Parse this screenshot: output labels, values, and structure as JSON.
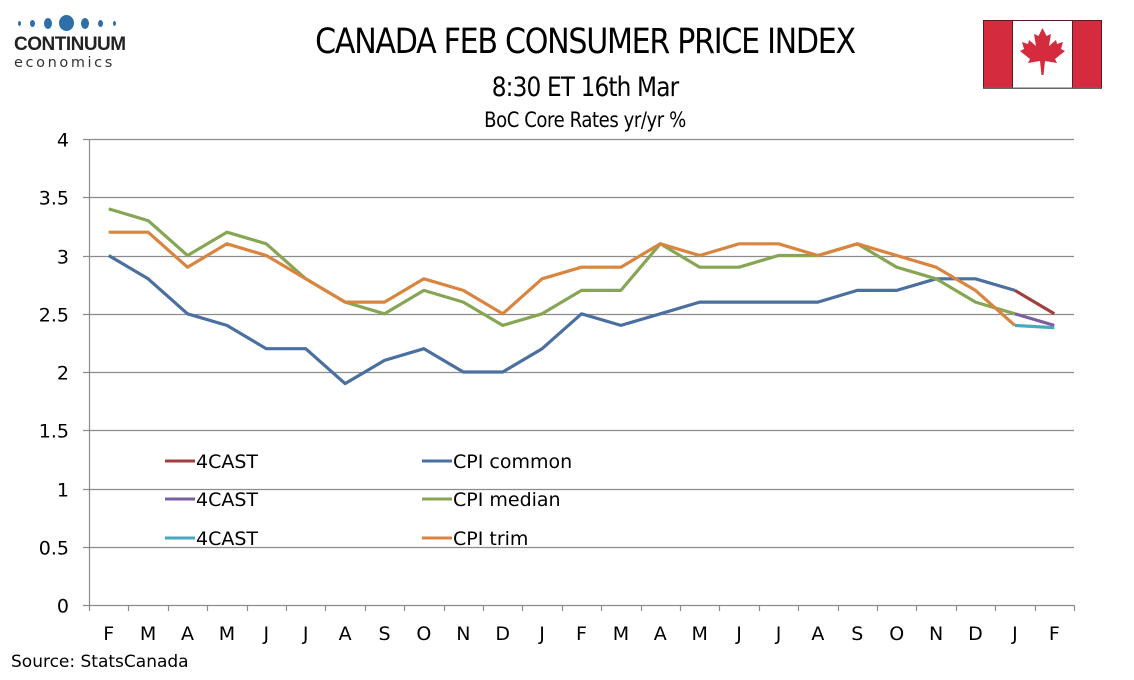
{
  "branding": {
    "logo_word": "CONTINUUM",
    "logo_sub": "economics",
    "flag_icon": "canada-flag-icon",
    "colors": {
      "logo_blue": "#2f6fa8",
      "flag_red": "#d52b3e"
    }
  },
  "header": {
    "title": "CANADA FEB CONSUMER PRICE INDEX",
    "subtitle": "8:30 ET 16th Mar"
  },
  "footer": {
    "source": "Source: StatsCanada"
  },
  "chart_data": {
    "type": "line",
    "title": "BoC Core Rates yr/yr %",
    "xlabel": "",
    "ylabel": "",
    "ylim": [
      0,
      4
    ],
    "yticks": [
      0,
      0.5,
      1,
      1.5,
      2,
      2.5,
      3,
      3.5,
      4
    ],
    "ytick_labels": [
      "0",
      "0.5",
      "1",
      "1.5",
      "2",
      "2.5",
      "3",
      "3.5",
      "4"
    ],
    "grid": true,
    "legend_position": "lower-left",
    "categories": [
      "F",
      "M",
      "A",
      "M",
      "J",
      "J",
      "A",
      "S",
      "O",
      "N",
      "D",
      "J",
      "F",
      "M",
      "A",
      "M",
      "J",
      "J",
      "A",
      "S",
      "O",
      "N",
      "D",
      "J",
      "F"
    ],
    "series": [
      {
        "name": "4CAST",
        "color": "#a0403c",
        "values": [
          null,
          null,
          null,
          null,
          null,
          null,
          null,
          null,
          null,
          null,
          null,
          null,
          null,
          null,
          null,
          null,
          null,
          null,
          null,
          null,
          null,
          null,
          null,
          2.7,
          2.5
        ]
      },
      {
        "name": "CPI common",
        "color": "#4a6fa0",
        "values": [
          3.0,
          2.8,
          2.5,
          2.4,
          2.2,
          2.2,
          1.9,
          2.1,
          2.2,
          2.0,
          2.0,
          2.2,
          2.5,
          2.4,
          2.5,
          2.6,
          2.6,
          2.6,
          2.6,
          2.7,
          2.7,
          2.8,
          2.8,
          2.7,
          null
        ]
      },
      {
        "name": "4CAST",
        "color": "#7a5ea0",
        "values": [
          null,
          null,
          null,
          null,
          null,
          null,
          null,
          null,
          null,
          null,
          null,
          null,
          null,
          null,
          null,
          null,
          null,
          null,
          null,
          null,
          null,
          null,
          null,
          2.5,
          2.4
        ]
      },
      {
        "name": "CPI median",
        "color": "#86a654",
        "values": [
          3.4,
          3.3,
          3.0,
          3.2,
          3.1,
          2.8,
          2.6,
          2.5,
          2.7,
          2.6,
          2.4,
          2.5,
          2.7,
          2.7,
          3.1,
          2.9,
          2.9,
          3.0,
          3.0,
          3.1,
          2.9,
          2.8,
          2.6,
          2.5,
          null
        ]
      },
      {
        "name": "4CAST",
        "color": "#45a9c0",
        "values": [
          null,
          null,
          null,
          null,
          null,
          null,
          null,
          null,
          null,
          null,
          null,
          null,
          null,
          null,
          null,
          null,
          null,
          null,
          null,
          null,
          null,
          null,
          null,
          2.4,
          2.38
        ]
      },
      {
        "name": "CPI trim",
        "color": "#d9853f",
        "values": [
          3.2,
          3.2,
          2.9,
          3.1,
          3.0,
          2.8,
          2.6,
          2.6,
          2.8,
          2.7,
          2.5,
          2.8,
          2.9,
          2.9,
          3.1,
          3.0,
          3.1,
          3.1,
          3.0,
          3.1,
          3.0,
          2.9,
          2.7,
          2.4,
          null
        ]
      }
    ]
  }
}
